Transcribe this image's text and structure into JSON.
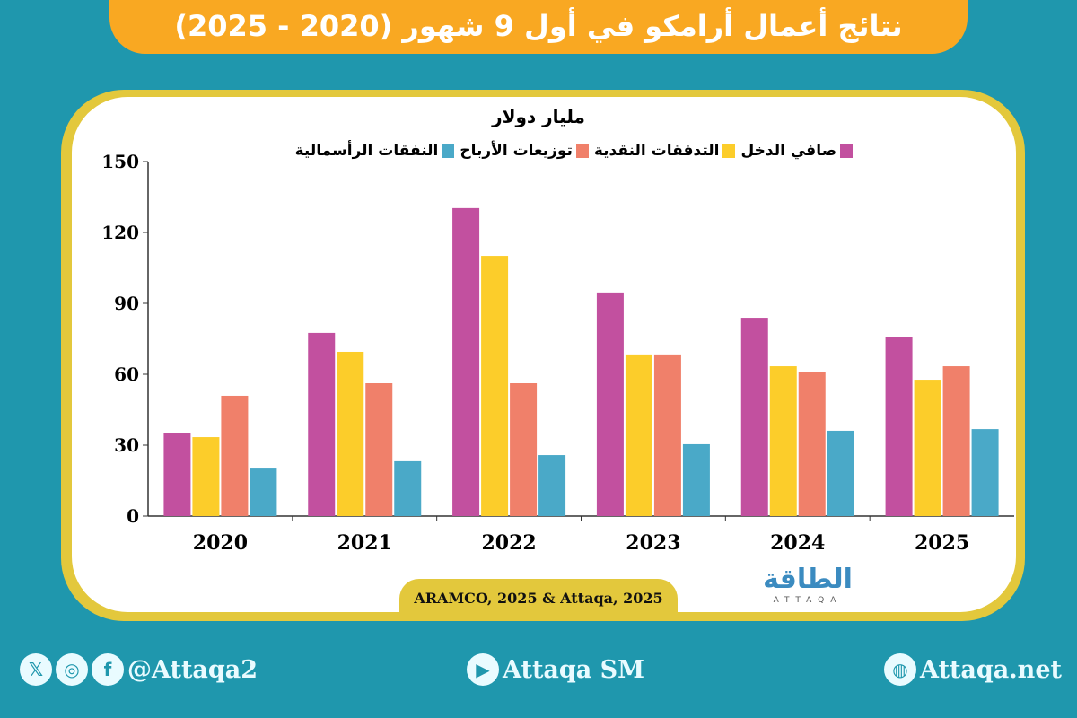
{
  "header": {
    "title": "نتائج أعمال أرامكو في أول 9 شهور (2020 - 2025)"
  },
  "chart_data": {
    "type": "bar",
    "title": "",
    "unit_label": "مليار دولار",
    "categories": [
      "2020",
      "2021",
      "2022",
      "2023",
      "2024",
      "2025"
    ],
    "series": [
      {
        "name": "صافي الدخل",
        "color": "#c2509f",
        "values": [
          35,
          77.5,
          130.3,
          94.6,
          83.9,
          75.6
        ]
      },
      {
        "name": "التدفقات النقدية",
        "color": "#fccd2a",
        "values": [
          33.4,
          69.5,
          110.1,
          68.4,
          63.4,
          57.7
        ]
      },
      {
        "name": "توزيعات الأرباح",
        "color": "#f0806a",
        "values": [
          50.9,
          56.2,
          56.2,
          68.4,
          61.1,
          63.4
        ]
      },
      {
        "name": "النفقات الرأسمالية",
        "color": "#4aa9c8",
        "values": [
          20.1,
          23.2,
          25.8,
          30.4,
          36.1,
          36.8
        ]
      }
    ],
    "yticks": [
      "0",
      "30",
      "60",
      "90",
      "120",
      "150"
    ],
    "ylim": [
      0,
      150
    ],
    "grid": false,
    "legend_placement": "top"
  },
  "source": "ARAMCO, 2025 & Attaqa, 2025",
  "logo": {
    "ar": "الطاقة",
    "en": "ATTAQA"
  },
  "footer": {
    "social": "@Attaqa2",
    "youtube": "Attaqa SM",
    "website": "Attaqa.net"
  },
  "icons": {
    "x": "x-icon",
    "instagram": "instagram-icon",
    "facebook": "facebook-icon",
    "youtube": "youtube-icon",
    "globe": "globe-icon"
  }
}
